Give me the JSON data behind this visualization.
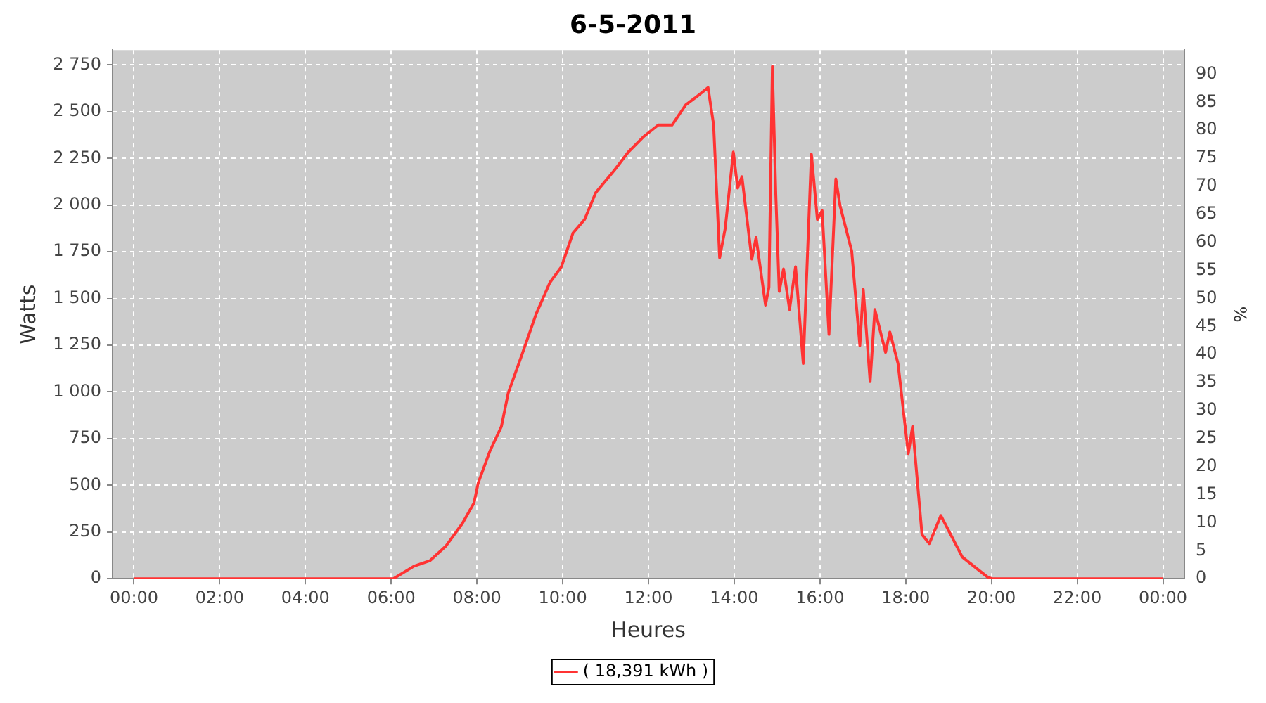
{
  "chart_data": {
    "type": "line",
    "title": "6-5-2011",
    "xlabel": "Heures",
    "ylabel": "Watts",
    "y2label": "%",
    "xlim": [
      -0.5,
      24.5
    ],
    "xticks": [
      {
        "value": 0,
        "label": "00:00"
      },
      {
        "value": 2,
        "label": "02:00"
      },
      {
        "value": 4,
        "label": "04:00"
      },
      {
        "value": 6,
        "label": "06:00"
      },
      {
        "value": 8,
        "label": "08:00"
      },
      {
        "value": 10,
        "label": "10:00"
      },
      {
        "value": 12,
        "label": "12:00"
      },
      {
        "value": 14,
        "label": "14:00"
      },
      {
        "value": 16,
        "label": "16:00"
      },
      {
        "value": 18,
        "label": "18:00"
      },
      {
        "value": 20,
        "label": "20:00"
      },
      {
        "value": 22,
        "label": "22:00"
      },
      {
        "value": 24,
        "label": "00:00"
      }
    ],
    "ylim": [
      0,
      2830
    ],
    "yticks": [
      0,
      250,
      500,
      750,
      {
        "value": 1000,
        "label": "1 000"
      },
      {
        "value": 1250,
        "label": "1 250"
      },
      {
        "value": 1500,
        "label": "1 500"
      },
      {
        "value": 1750,
        "label": "1 750"
      },
      {
        "value": 2000,
        "label": "2 000"
      },
      {
        "value": 2250,
        "label": "2 250"
      },
      {
        "value": 2500,
        "label": "2 500"
      },
      {
        "value": 2750,
        "label": "2 750"
      }
    ],
    "y2lim": [
      0,
      94.3
    ],
    "y2ticks": [
      0,
      5,
      10,
      15,
      20,
      25,
      30,
      35,
      40,
      45,
      50,
      55,
      60,
      65,
      70,
      75,
      80,
      85,
      90
    ],
    "grid": true,
    "legend": "bottom",
    "marker": "none",
    "line_style": "solid",
    "series": [
      {
        "name": "( 18,391 kWh )",
        "color": "#ff3333",
        "x": [
          0,
          6.05,
          6.53,
          6.9,
          7.28,
          7.66,
          7.93,
          8.03,
          8.3,
          8.57,
          8.73,
          9.05,
          9.38,
          9.7,
          9.97,
          10.24,
          10.51,
          10.77,
          11.21,
          11.53,
          11.9,
          12.23,
          12.55,
          12.87,
          13.09,
          13.39,
          13.52,
          13.66,
          13.79,
          13.98,
          14.08,
          14.18,
          14.41,
          14.51,
          14.73,
          14.81,
          14.89,
          14.97,
          15.05,
          15.15,
          15.29,
          15.43,
          15.61,
          15.8,
          15.94,
          16.05,
          16.21,
          16.37,
          16.47,
          16.74,
          16.93,
          17.01,
          17.17,
          17.28,
          17.53,
          17.63,
          17.82,
          18.06,
          18.16,
          18.38,
          18.55,
          18.82,
          19.05,
          19.32,
          19.65,
          19.92,
          20.02,
          24
        ],
        "values": [
          0,
          0,
          67,
          96,
          176,
          296,
          405,
          513,
          682,
          815,
          995,
          1200,
          1417,
          1585,
          1670,
          1851,
          1923,
          2067,
          2188,
          2284,
          2369,
          2429,
          2429,
          2537,
          2574,
          2629,
          2429,
          1718,
          1875,
          2284,
          2091,
          2152,
          1711,
          1827,
          1465,
          1561,
          2742,
          2055,
          1538,
          1658,
          1441,
          1670,
          1152,
          2272,
          1923,
          1971,
          1308,
          2140,
          1995,
          1754,
          1248,
          1549,
          1055,
          1441,
          1212,
          1321,
          1152,
          670,
          815,
          236,
          188,
          338,
          236,
          116,
          56,
          7,
          0,
          0
        ]
      }
    ]
  }
}
